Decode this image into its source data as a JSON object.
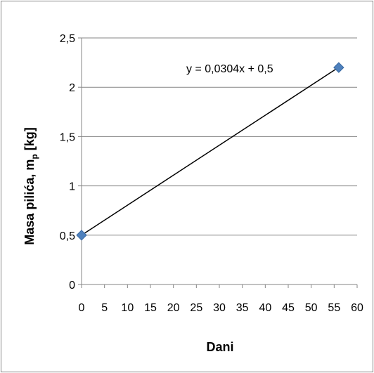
{
  "chart_data": {
    "type": "scatter",
    "title": "",
    "xlabel": "Dani",
    "ylabel_main": "Masa pilića, m",
    "ylabel_sub": "p",
    "ylabel_unit": " [kg]",
    "xlim": [
      0,
      60
    ],
    "ylim": [
      0,
      2.5
    ],
    "x_ticks": [
      "0",
      "5",
      "10",
      "15",
      "20",
      "25",
      "30",
      "35",
      "40",
      "45",
      "50",
      "55",
      "60"
    ],
    "y_ticks": [
      "0",
      "0,5",
      "1",
      "1,5",
      "2",
      "2,5"
    ],
    "grid": "horizontal",
    "legend": "none",
    "series": [
      {
        "points": [
          {
            "x": 0,
            "y": 0.5
          },
          {
            "x": 56,
            "y": 2.2
          }
        ],
        "marker_color": "#4f81bd"
      }
    ],
    "trendline": {
      "equation": "y = 0,0304x + 0,5",
      "slope": 0.0304,
      "intercept": 0.5,
      "x_range": [
        0,
        56
      ],
      "color": "#000000"
    }
  }
}
